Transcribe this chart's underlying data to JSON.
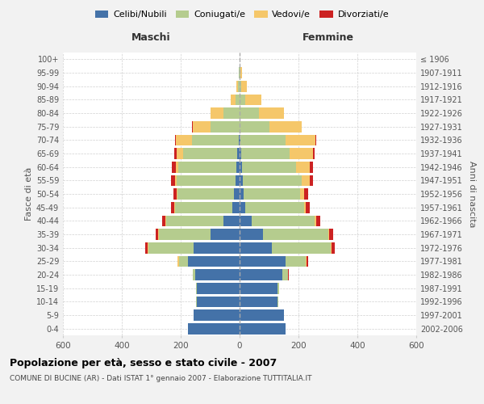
{
  "age_groups": [
    "0-4",
    "5-9",
    "10-14",
    "15-19",
    "20-24",
    "25-29",
    "30-34",
    "35-39",
    "40-44",
    "45-49",
    "50-54",
    "55-59",
    "60-64",
    "65-69",
    "70-74",
    "75-79",
    "80-84",
    "85-89",
    "90-94",
    "95-99",
    "100+"
  ],
  "birth_years": [
    "2002-2006",
    "1997-2001",
    "1992-1996",
    "1987-1991",
    "1982-1986",
    "1977-1981",
    "1972-1976",
    "1967-1971",
    "1962-1966",
    "1957-1961",
    "1952-1956",
    "1947-1951",
    "1942-1946",
    "1937-1941",
    "1932-1936",
    "1927-1931",
    "1922-1926",
    "1917-1921",
    "1912-1916",
    "1907-1911",
    "≤ 1906"
  ],
  "male": {
    "celibi": [
      175,
      155,
      145,
      145,
      150,
      175,
      155,
      100,
      55,
      25,
      20,
      15,
      12,
      8,
      2,
      0,
      0,
      0,
      0,
      0,
      0
    ],
    "coniugati": [
      0,
      0,
      2,
      2,
      10,
      30,
      155,
      175,
      195,
      195,
      190,
      200,
      195,
      185,
      160,
      100,
      55,
      15,
      5,
      2,
      0
    ],
    "vedovi": [
      0,
      0,
      0,
      0,
      0,
      5,
      2,
      2,
      3,
      3,
      5,
      5,
      10,
      20,
      55,
      60,
      45,
      15,
      5,
      2,
      0
    ],
    "divorziati": [
      0,
      0,
      0,
      0,
      0,
      2,
      8,
      8,
      10,
      10,
      10,
      12,
      12,
      8,
      2,
      2,
      0,
      0,
      0,
      0,
      0
    ]
  },
  "female": {
    "nubili": [
      155,
      150,
      130,
      130,
      145,
      155,
      110,
      80,
      40,
      18,
      15,
      12,
      8,
      5,
      2,
      0,
      0,
      0,
      0,
      0,
      0
    ],
    "coniugate": [
      2,
      2,
      2,
      5,
      20,
      70,
      200,
      220,
      215,
      200,
      190,
      200,
      185,
      165,
      155,
      100,
      65,
      20,
      5,
      2,
      0
    ],
    "vedove": [
      0,
      0,
      0,
      0,
      0,
      2,
      2,
      3,
      5,
      8,
      15,
      25,
      45,
      80,
      100,
      110,
      85,
      55,
      20,
      5,
      0
    ],
    "divorziate": [
      0,
      0,
      0,
      0,
      2,
      5,
      12,
      15,
      15,
      12,
      12,
      12,
      12,
      5,
      2,
      2,
      0,
      0,
      0,
      0,
      0
    ]
  },
  "colors": {
    "celibi_nubili": "#4472a8",
    "coniugati": "#b5cc8e",
    "vedovi": "#f5c76a",
    "divorziati": "#cc2222"
  },
  "xlim": 600,
  "title": "Popolazione per età, sesso e stato civile - 2007",
  "subtitle": "COMUNE DI BUCINE (AR) - Dati ISTAT 1° gennaio 2007 - Elaborazione TUTTITALIA.IT",
  "ylabel": "Fasce di età",
  "ylabel_right": "Anni di nascita",
  "xlabel_left": "Maschi",
  "xlabel_right": "Femmine",
  "background_color": "#f2f2f2",
  "plot_background": "#ffffff"
}
